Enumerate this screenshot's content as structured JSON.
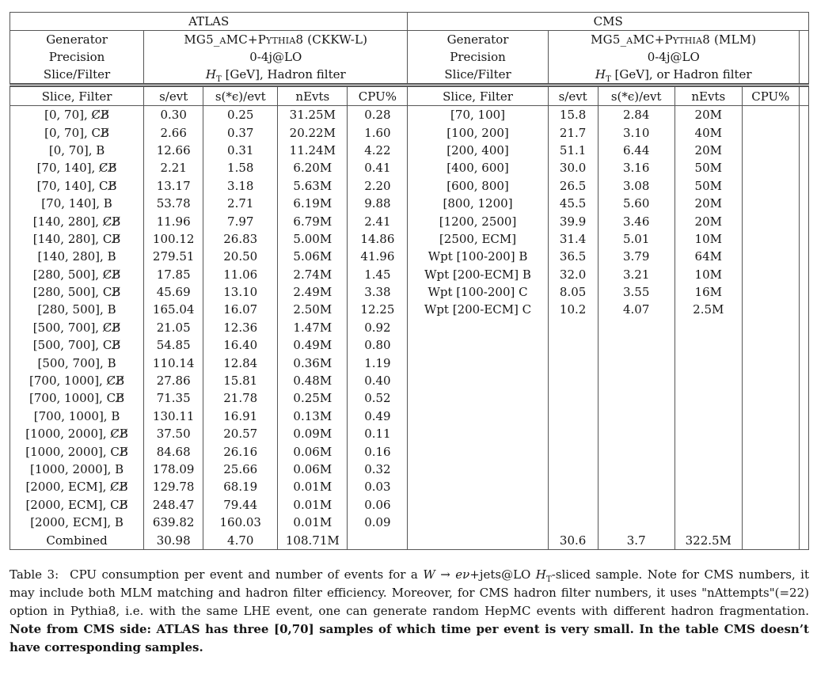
{
  "table": {
    "atlas": {
      "title": "ATLAS",
      "meta": {
        "generator_label": "Generator",
        "generator_value": "MG5_aMC+Pythia8 (CKKW-L)",
        "precision_label": "Precision",
        "precision_value": "0-4j@LO",
        "slice_label": "Slice/Filter",
        "slice_value_pre": "H",
        "slice_value_sub": "T",
        "slice_value_post": " [GeV], Hadron filter"
      },
      "columns": [
        "Slice, Filter",
        "s/evt",
        "s(*ϵ)/evt",
        "nEvts",
        "CPU%"
      ],
      "rows": [
        [
          "[0, 70], C̸B̸",
          "0.30",
          "0.25",
          "31.25M",
          "0.28"
        ],
        [
          "[0, 70], CB̸",
          "2.66",
          "0.37",
          "20.22M",
          "1.60"
        ],
        [
          "[0, 70], B",
          "12.66",
          "0.31",
          "11.24M",
          "4.22"
        ],
        [
          "[70, 140], C̸B̸",
          "2.21",
          "1.58",
          "6.20M",
          "0.41"
        ],
        [
          "[70, 140], CB̸",
          "13.17",
          "3.18",
          "5.63M",
          "2.20"
        ],
        [
          "[70, 140], B",
          "53.78",
          "2.71",
          "6.19M",
          "9.88"
        ],
        [
          "[140, 280], C̸B̸",
          "11.96",
          "7.97",
          "6.79M",
          "2.41"
        ],
        [
          "[140, 280], CB̸",
          "100.12",
          "26.83",
          "5.00M",
          "14.86"
        ],
        [
          "[140, 280], B",
          "279.51",
          "20.50",
          "5.06M",
          "41.96"
        ],
        [
          "[280, 500], C̸B̸",
          "17.85",
          "11.06",
          "2.74M",
          "1.45"
        ],
        [
          "[280, 500], CB̸",
          "45.69",
          "13.10",
          "2.49M",
          "3.38"
        ],
        [
          "[280, 500], B",
          "165.04",
          "16.07",
          "2.50M",
          "12.25"
        ],
        [
          "[500, 700], C̸B̸",
          "21.05",
          "12.36",
          "1.47M",
          "0.92"
        ],
        [
          "[500, 700], CB̸",
          "54.85",
          "16.40",
          "0.49M",
          "0.80"
        ],
        [
          "[500, 700], B",
          "110.14",
          "12.84",
          "0.36M",
          "1.19"
        ],
        [
          "[700, 1000], C̸B̸",
          "27.86",
          "15.81",
          "0.48M",
          "0.40"
        ],
        [
          "[700, 1000], CB̸",
          "71.35",
          "21.78",
          "0.25M",
          "0.52"
        ],
        [
          "[700, 1000], B",
          "130.11",
          "16.91",
          "0.13M",
          "0.49"
        ],
        [
          "[1000, 2000], C̸B̸",
          "37.50",
          "20.57",
          "0.09M",
          "0.11"
        ],
        [
          "[1000, 2000], CB̸",
          "84.68",
          "26.16",
          "0.06M",
          "0.16"
        ],
        [
          "[1000, 2000], B",
          "178.09",
          "25.66",
          "0.06M",
          "0.32"
        ],
        [
          "[2000, ECM], C̸B̸",
          "129.78",
          "68.19",
          "0.01M",
          "0.03"
        ],
        [
          "[2000, ECM], CB̸",
          "248.47",
          "79.44",
          "0.01M",
          "0.06"
        ],
        [
          "[2000, ECM], B",
          "639.82",
          "160.03",
          "0.01M",
          "0.09"
        ]
      ],
      "combined": [
        "Combined",
        "30.98",
        "4.70",
        "108.71M",
        ""
      ]
    },
    "cms": {
      "title": "CMS",
      "meta": {
        "generator_label": "Generator",
        "generator_value": "MG5_aMC+Pythia8 (MLM)",
        "precision_label": "Precision",
        "precision_value": "0-4j@LO",
        "slice_label": "Slice/Filter",
        "slice_value_pre": "H",
        "slice_value_sub": "T",
        "slice_value_post": " [GeV], or Hadron filter"
      },
      "columns": [
        "Slice, Filter",
        "s/evt",
        "s(*ϵ)/evt",
        "nEvts",
        "CPU%"
      ],
      "rows": [
        [
          "[70, 100]",
          "15.8",
          "2.84",
          "20M",
          ""
        ],
        [
          "[100, 200]",
          "21.7",
          "3.10",
          "40M",
          ""
        ],
        [
          "[200, 400]",
          "51.1",
          "6.44",
          "20M",
          ""
        ],
        [
          "[400, 600]",
          "30.0",
          "3.16",
          "50M",
          ""
        ],
        [
          "[600, 800]",
          "26.5",
          "3.08",
          "50M",
          ""
        ],
        [
          "[800, 1200]",
          "45.5",
          "5.60",
          "20M",
          ""
        ],
        [
          "[1200, 2500]",
          "39.9",
          "3.46",
          "20M",
          ""
        ],
        [
          "[2500, ECM]",
          "31.4",
          "5.01",
          "10M",
          ""
        ],
        [
          "Wpt [100-200] B",
          "36.5",
          "3.79",
          "64M",
          ""
        ],
        [
          "Wpt [200-ECM] B",
          "32.0",
          "3.21",
          "10M",
          ""
        ],
        [
          "Wpt [100-200] C",
          "8.05",
          "3.55",
          "16M",
          ""
        ],
        [
          "Wpt [200-ECM] C",
          "10.2",
          "4.07",
          "2.5M",
          ""
        ]
      ],
      "combined": [
        "",
        "30.6",
        "3.7",
        "322.5M",
        ""
      ]
    }
  },
  "caption": {
    "label": "Table 3:",
    "seg1": "CPU consumption per event and number of events for a ",
    "w": "W",
    "arrow": " → ",
    "enu": "eν",
    "jets": "+jets@LO ",
    "h": "H",
    "hsub": "T",
    "seg2": "-sliced sample. Note for CMS numbers, it may include both MLM matching and hadron filter efficiency. Moreover, for CMS hadron filter numbers, it uses \"nAttempts\"(=22) option in Pythia8, i.e. with the same LHE event, one can generate random HepMC events with different hadron fragmentation. ",
    "bold": "Note from CMS side: ATLAS has three [0,70] samples of which time per event is very small. In the table CMS doesn’t have corresponding samples."
  }
}
